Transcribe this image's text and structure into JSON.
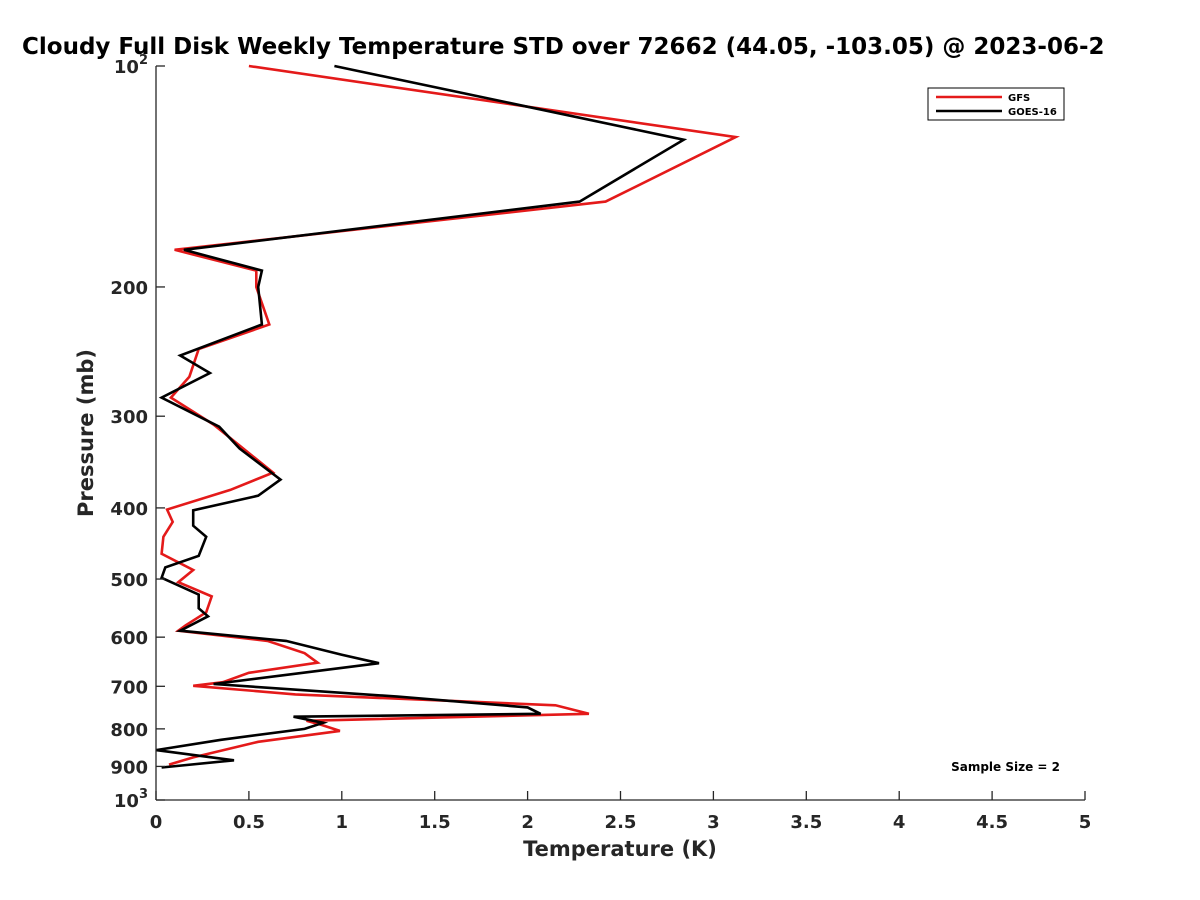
{
  "chart_data": {
    "type": "line",
    "title": "Cloudy Full Disk Weekly Temperature STD over 72662 (44.05, -103.05) @ 2023-06-2",
    "xlabel": "Temperature (K)",
    "ylabel": "Pressure (mb)",
    "xlim": [
      0,
      5
    ],
    "ylim": [
      1000,
      100
    ],
    "yscale": "log",
    "x_ticks": [
      0,
      0.5,
      1,
      1.5,
      2,
      2.5,
      3,
      3.5,
      4,
      4.5,
      5
    ],
    "x_tick_labels": [
      "0",
      "0.5",
      "1",
      "1.5",
      "2",
      "2.5",
      "3",
      "3.5",
      "4",
      "4.5",
      "5"
    ],
    "y_ticks": [
      100,
      200,
      300,
      400,
      500,
      600,
      700,
      800,
      900,
      1000
    ],
    "y_tick_labels": [
      {
        "base": "10",
        "exp": "2"
      },
      {
        "base": "200",
        "exp": ""
      },
      {
        "base": "300",
        "exp": ""
      },
      {
        "base": "400",
        "exp": ""
      },
      {
        "base": "500",
        "exp": ""
      },
      {
        "base": "600",
        "exp": ""
      },
      {
        "base": "700",
        "exp": ""
      },
      {
        "base": "800",
        "exp": ""
      },
      {
        "base": "900",
        "exp": ""
      },
      {
        "base": "10",
        "exp": "3"
      }
    ],
    "grid": false,
    "legend_position": "top-right",
    "annotation": "Sample Size = 2",
    "series": [
      {
        "name": "GFS",
        "color": "#e41a1a",
        "points": [
          {
            "x": 0.5,
            "p": 100
          },
          {
            "x": 3.12,
            "p": 125
          },
          {
            "x": 2.42,
            "p": 153
          },
          {
            "x": 0.1,
            "p": 178
          },
          {
            "x": 0.54,
            "p": 190
          },
          {
            "x": 0.54,
            "p": 200
          },
          {
            "x": 0.61,
            "p": 225
          },
          {
            "x": 0.23,
            "p": 243
          },
          {
            "x": 0.18,
            "p": 265
          },
          {
            "x": 0.08,
            "p": 283
          },
          {
            "x": 0.31,
            "p": 308
          },
          {
            "x": 0.63,
            "p": 358
          },
          {
            "x": 0.4,
            "p": 378
          },
          {
            "x": 0.06,
            "p": 402
          },
          {
            "x": 0.09,
            "p": 418
          },
          {
            "x": 0.04,
            "p": 438
          },
          {
            "x": 0.03,
            "p": 462
          },
          {
            "x": 0.2,
            "p": 486
          },
          {
            "x": 0.12,
            "p": 505
          },
          {
            "x": 0.3,
            "p": 528
          },
          {
            "x": 0.27,
            "p": 555
          },
          {
            "x": 0.16,
            "p": 578
          },
          {
            "x": 0.12,
            "p": 588
          },
          {
            "x": 0.6,
            "p": 607
          },
          {
            "x": 0.8,
            "p": 631
          },
          {
            "x": 0.87,
            "p": 650
          },
          {
            "x": 0.5,
            "p": 671
          },
          {
            "x": 0.36,
            "p": 691
          },
          {
            "x": 0.2,
            "p": 699
          },
          {
            "x": 0.75,
            "p": 718
          },
          {
            "x": 2.15,
            "p": 743
          },
          {
            "x": 2.33,
            "p": 763
          },
          {
            "x": 0.81,
            "p": 780
          },
          {
            "x": 0.89,
            "p": 790
          },
          {
            "x": 0.99,
            "p": 805
          },
          {
            "x": 0.55,
            "p": 833
          },
          {
            "x": 0.2,
            "p": 875
          },
          {
            "x": 0.07,
            "p": 895
          }
        ]
      },
      {
        "name": "GOES-16",
        "color": "#000000",
        "points": [
          {
            "x": 0.96,
            "p": 100
          },
          {
            "x": 2.84,
            "p": 126
          },
          {
            "x": 2.28,
            "p": 153
          },
          {
            "x": 0.15,
            "p": 178
          },
          {
            "x": 0.57,
            "p": 190
          },
          {
            "x": 0.55,
            "p": 200
          },
          {
            "x": 0.57,
            "p": 225
          },
          {
            "x": 0.13,
            "p": 248
          },
          {
            "x": 0.29,
            "p": 262
          },
          {
            "x": 0.03,
            "p": 283
          },
          {
            "x": 0.34,
            "p": 310
          },
          {
            "x": 0.45,
            "p": 332
          },
          {
            "x": 0.67,
            "p": 366
          },
          {
            "x": 0.55,
            "p": 385
          },
          {
            "x": 0.2,
            "p": 403
          },
          {
            "x": 0.2,
            "p": 423
          },
          {
            "x": 0.27,
            "p": 438
          },
          {
            "x": 0.23,
            "p": 465
          },
          {
            "x": 0.05,
            "p": 482
          },
          {
            "x": 0.03,
            "p": 498
          },
          {
            "x": 0.23,
            "p": 525
          },
          {
            "x": 0.23,
            "p": 548
          },
          {
            "x": 0.28,
            "p": 562
          },
          {
            "x": 0.13,
            "p": 588
          },
          {
            "x": 0.7,
            "p": 607
          },
          {
            "x": 1.0,
            "p": 634
          },
          {
            "x": 1.2,
            "p": 651
          },
          {
            "x": 0.87,
            "p": 667
          },
          {
            "x": 0.31,
            "p": 695
          },
          {
            "x": 1.3,
            "p": 723
          },
          {
            "x": 2.0,
            "p": 748
          },
          {
            "x": 2.07,
            "p": 763
          },
          {
            "x": 0.74,
            "p": 770
          },
          {
            "x": 0.9,
            "p": 785
          },
          {
            "x": 0.8,
            "p": 800
          },
          {
            "x": 0.35,
            "p": 828
          },
          {
            "x": 0.0,
            "p": 855
          },
          {
            "x": 0.42,
            "p": 883
          },
          {
            "x": 0.03,
            "p": 903
          }
        ]
      }
    ]
  }
}
